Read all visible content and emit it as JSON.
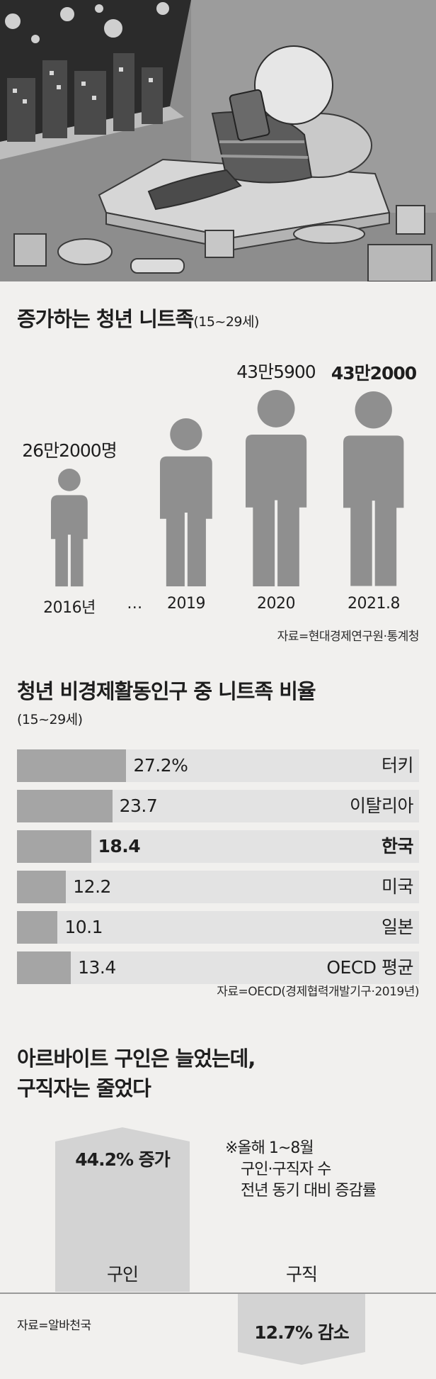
{
  "illustration": {
    "icon": "youth-at-home-with-tablet-illustration"
  },
  "chart1": {
    "title": "증가하는 청년 니트족",
    "subtitle": "(15~29세)",
    "source": "자료=현대경제연구원·통계청",
    "gap_label": "…"
  },
  "chart2": {
    "title": "청년 비경제활동인구 중 니트족 비율",
    "subtitle": "(15~29세)",
    "source": "자료=OECD(경제협력개발기구·2019년)"
  },
  "chart3": {
    "title_line1": "아르바이트 구인은 늘었는데,",
    "title_line2": "구직자는 줄었다",
    "note_line1": "※올해 1~8월",
    "note_line2": "구인·구직자 수",
    "note_line3": "전년 동기 대비 증감률",
    "source": "자료=알바천국"
  },
  "chart_data": [
    {
      "type": "bar",
      "title": "증가하는 청년 니트족",
      "subtitle": "(15~29세)",
      "categories": [
        "2016년",
        "2019",
        "2020",
        "2021.8"
      ],
      "values": [
        262000,
        null,
        435900,
        432000
      ],
      "value_labels": [
        "26만2000명",
        "",
        "43만5900",
        "43만2000"
      ],
      "highlight_index": 3,
      "marker": "person-icon"
    },
    {
      "type": "bar",
      "orientation": "horizontal",
      "title": "청년 비경제활동인구 중 니트족 비율",
      "subtitle": "(15~29세)",
      "categories": [
        "터키",
        "이탈리아",
        "한국",
        "미국",
        "일본",
        "OECD 평균"
      ],
      "values": [
        27.2,
        23.7,
        18.4,
        12.2,
        10.1,
        13.4
      ],
      "value_labels": [
        "27.2%",
        "23.7",
        "18.4",
        "12.2",
        "10.1",
        "13.4"
      ],
      "highlight_index": 2,
      "xlim": [
        0,
        100
      ]
    },
    {
      "type": "bar",
      "title": "아르바이트 구인은 늘었는데, 구직자는 줄었다",
      "categories": [
        "구인",
        "구직"
      ],
      "values": [
        44.2,
        -12.7
      ],
      "value_labels": [
        "44.2% 증가",
        "12.7% 감소"
      ]
    }
  ]
}
